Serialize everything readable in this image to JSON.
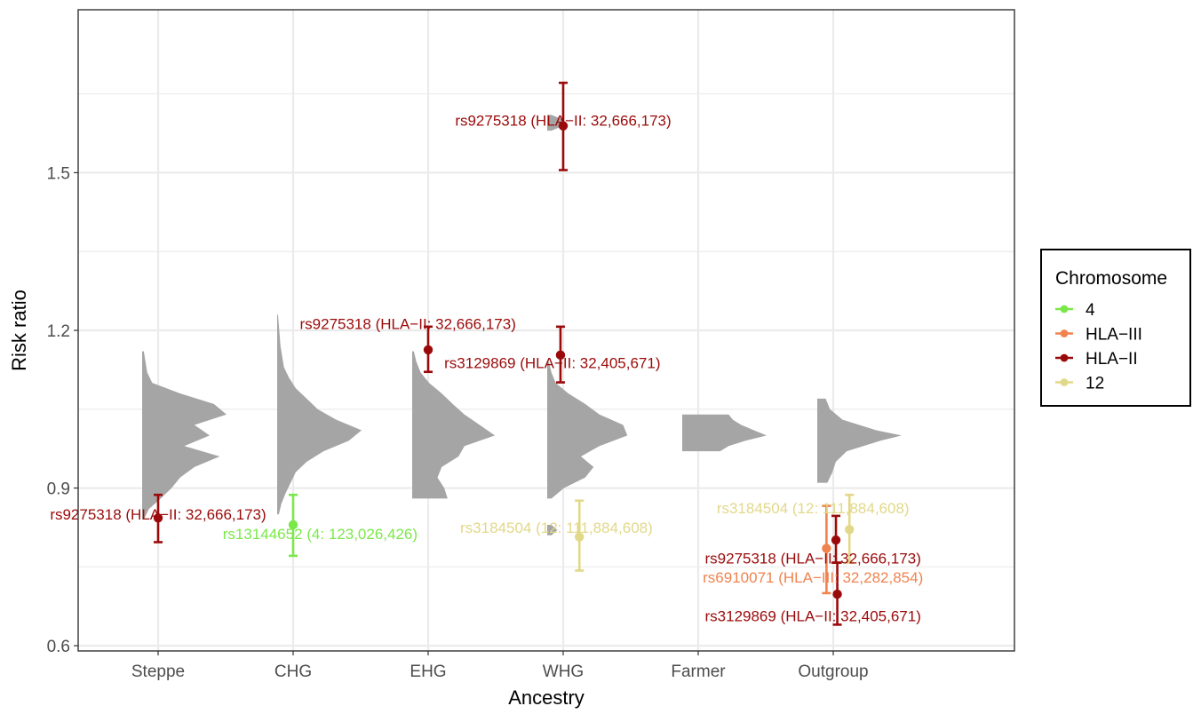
{
  "chart_data": {
    "type": "scatter",
    "xlabel": "Ancestry",
    "ylabel": "Risk ratio",
    "categories": [
      "Steppe",
      "CHG",
      "EHG",
      "WHG",
      "Farmer",
      "Outgroup"
    ],
    "ylim": [
      0.59,
      1.81
    ],
    "yticks": [
      0.6,
      0.9,
      1.2,
      1.5
    ],
    "ytick_labels": [
      "0.6",
      "0.9",
      "1.2",
      "1.5"
    ],
    "grid": true,
    "legend": {
      "title": "Chromosome",
      "placement": "right",
      "entries": [
        {
          "label": "4",
          "color": "#7be84a"
        },
        {
          "label": "HLA−III",
          "color": "#f0834e"
        },
        {
          "label": "HLA−II",
          "color": "#9b0a0a"
        },
        {
          "label": "12",
          "color": "#e2d889"
        }
      ]
    },
    "distributions": [
      {
        "category": "Steppe",
        "y": [
          0.84,
          0.86,
          0.88,
          0.9,
          0.92,
          0.94,
          0.96,
          0.98,
          1.0,
          1.02,
          1.04,
          1.06,
          1.08,
          1.1,
          1.12,
          1.14,
          1.16
        ],
        "density": [
          0.02,
          0.08,
          0.22,
          0.35,
          0.45,
          0.62,
          0.92,
          0.5,
          0.8,
          0.62,
          1.0,
          0.85,
          0.45,
          0.12,
          0.06,
          0.04,
          0.02
        ]
      },
      {
        "category": "CHG",
        "y": [
          0.85,
          0.87,
          0.89,
          0.91,
          0.93,
          0.95,
          0.97,
          0.99,
          1.01,
          1.03,
          1.05,
          1.07,
          1.09,
          1.11,
          1.13,
          1.15,
          1.17,
          1.19,
          1.21,
          1.23
        ],
        "density": [
          0.02,
          0.05,
          0.1,
          0.16,
          0.22,
          0.35,
          0.55,
          0.85,
          1.0,
          0.7,
          0.48,
          0.35,
          0.22,
          0.14,
          0.08,
          0.06,
          0.04,
          0.03,
          0.02,
          0.01
        ]
      },
      {
        "category": "EHG",
        "y": [
          0.88,
          0.9,
          0.92,
          0.94,
          0.96,
          0.98,
          1.0,
          1.02,
          1.04,
          1.06,
          1.08,
          1.1,
          1.12,
          1.14,
          1.16
        ],
        "density": [
          0.42,
          0.38,
          0.3,
          0.35,
          0.55,
          0.62,
          0.98,
          0.8,
          0.62,
          0.48,
          0.35,
          0.2,
          0.1,
          0.05,
          0.02
        ]
      },
      {
        "category": "WHG",
        "y": [
          0.88,
          0.9,
          0.92,
          0.94,
          0.96,
          0.98,
          1.0,
          1.02,
          1.04,
          1.06,
          1.08,
          1.1,
          1.12,
          1.14
        ],
        "density": [
          0.05,
          0.2,
          0.45,
          0.55,
          0.4,
          0.62,
          0.95,
          0.9,
          0.62,
          0.45,
          0.25,
          0.1,
          0.05,
          0.02
        ]
      },
      {
        "category": "WHG",
        "y": [
          1.58,
          1.59,
          1.6,
          1.61
        ],
        "density": [
          0.05,
          0.2,
          0.2,
          0.05
        ]
      },
      {
        "category": "WHG",
        "y": [
          0.81,
          0.82,
          0.83
        ],
        "density": [
          0.05,
          0.12,
          0.05
        ]
      },
      {
        "category": "Farmer",
        "y": [
          0.97,
          0.98,
          0.99,
          1.0,
          1.01,
          1.02,
          1.03,
          1.04
        ],
        "density": [
          0.45,
          0.55,
          0.75,
          1.0,
          0.85,
          0.7,
          0.6,
          0.55
        ]
      },
      {
        "category": "Outgroup",
        "y": [
          0.91,
          0.93,
          0.95,
          0.97,
          0.99,
          1.0,
          1.01,
          1.03,
          1.05,
          1.07
        ],
        "density": [
          0.12,
          0.18,
          0.22,
          0.35,
          0.75,
          1.0,
          0.7,
          0.3,
          0.15,
          0.1
        ]
      }
    ],
    "points": [
      {
        "category": "Steppe",
        "offset": 0.0,
        "y": 0.843,
        "ylo": 0.797,
        "yhi": 0.887,
        "group": "HLA−II",
        "label": "rs9275318 (HLA−II: 32,666,173)",
        "label_anchor": "middle",
        "label_dx": 0.0,
        "label_y": 0.85
      },
      {
        "category": "CHG",
        "offset": 0.0,
        "y": 0.83,
        "ylo": 0.771,
        "yhi": 0.887,
        "group": "4",
        "label": "rs13144652 (4: 123,026,426)",
        "label_anchor": "middle",
        "label_dx": 0.2,
        "label_y": 0.813
      },
      {
        "category": "EHG",
        "offset": 0.0,
        "y": 1.163,
        "ylo": 1.121,
        "yhi": 1.207,
        "group": "HLA−II",
        "label": "rs9275318 (HLA−II: 32,666,173)",
        "label_anchor": "middle",
        "label_dx": -0.15,
        "label_y": 1.213
      },
      {
        "category": "WHG",
        "offset": -0.02,
        "y": 1.153,
        "ylo": 1.101,
        "yhi": 1.207,
        "group": "HLA−II",
        "label": "rs3129869 (HLA−II: 32,405,671)",
        "label_anchor": "middle",
        "label_dx": -0.08,
        "label_y": 1.138
      },
      {
        "category": "WHG",
        "offset": 0.0,
        "y": 1.589,
        "ylo": 1.505,
        "yhi": 1.671,
        "group": "HLA−II",
        "label": "rs9275318 (HLA−II: 32,666,173)",
        "label_anchor": "middle",
        "label_dx": 0.0,
        "label_y": 1.6
      },
      {
        "category": "WHG",
        "offset": 0.12,
        "y": 0.807,
        "ylo": 0.743,
        "yhi": 0.876,
        "group": "12",
        "label": "rs3184504 (12: 111,884,608)",
        "label_anchor": "middle",
        "label_dx": -0.05,
        "label_y": 0.825
      },
      {
        "category": "Outgroup",
        "offset": -0.05,
        "y": 0.785,
        "ylo": 0.7,
        "yhi": 0.866,
        "group": "HLA−III",
        "label": "rs6910071 (HLA−III: 32,282,854)",
        "label_anchor": "middle",
        "label_dx": -0.15,
        "label_y": 0.73
      },
      {
        "category": "Outgroup",
        "offset": 0.03,
        "y": 0.698,
        "ylo": 0.64,
        "yhi": 0.758,
        "group": "HLA−II",
        "label": "rs3129869 (HLA−II: 32,405,671)",
        "label_anchor": "middle",
        "label_dx": -0.15,
        "label_y": 0.657
      },
      {
        "category": "Outgroup",
        "offset": 0.12,
        "y": 0.821,
        "ylo": 0.758,
        "yhi": 0.887,
        "group": "12",
        "label": "rs3184504 (12: 111,884,608)",
        "label_anchor": "middle",
        "label_dx": -0.15,
        "label_y": 0.862
      },
      {
        "category": "Outgroup",
        "offset": 0.02,
        "y": 0.801,
        "ylo": 0.758,
        "yhi": 0.847,
        "group": "HLA−II",
        "label": "rs9275318 (HLA−II: 32,666,173)",
        "label_anchor": "middle",
        "label_dx": -0.15,
        "label_y": 0.767
      }
    ]
  }
}
